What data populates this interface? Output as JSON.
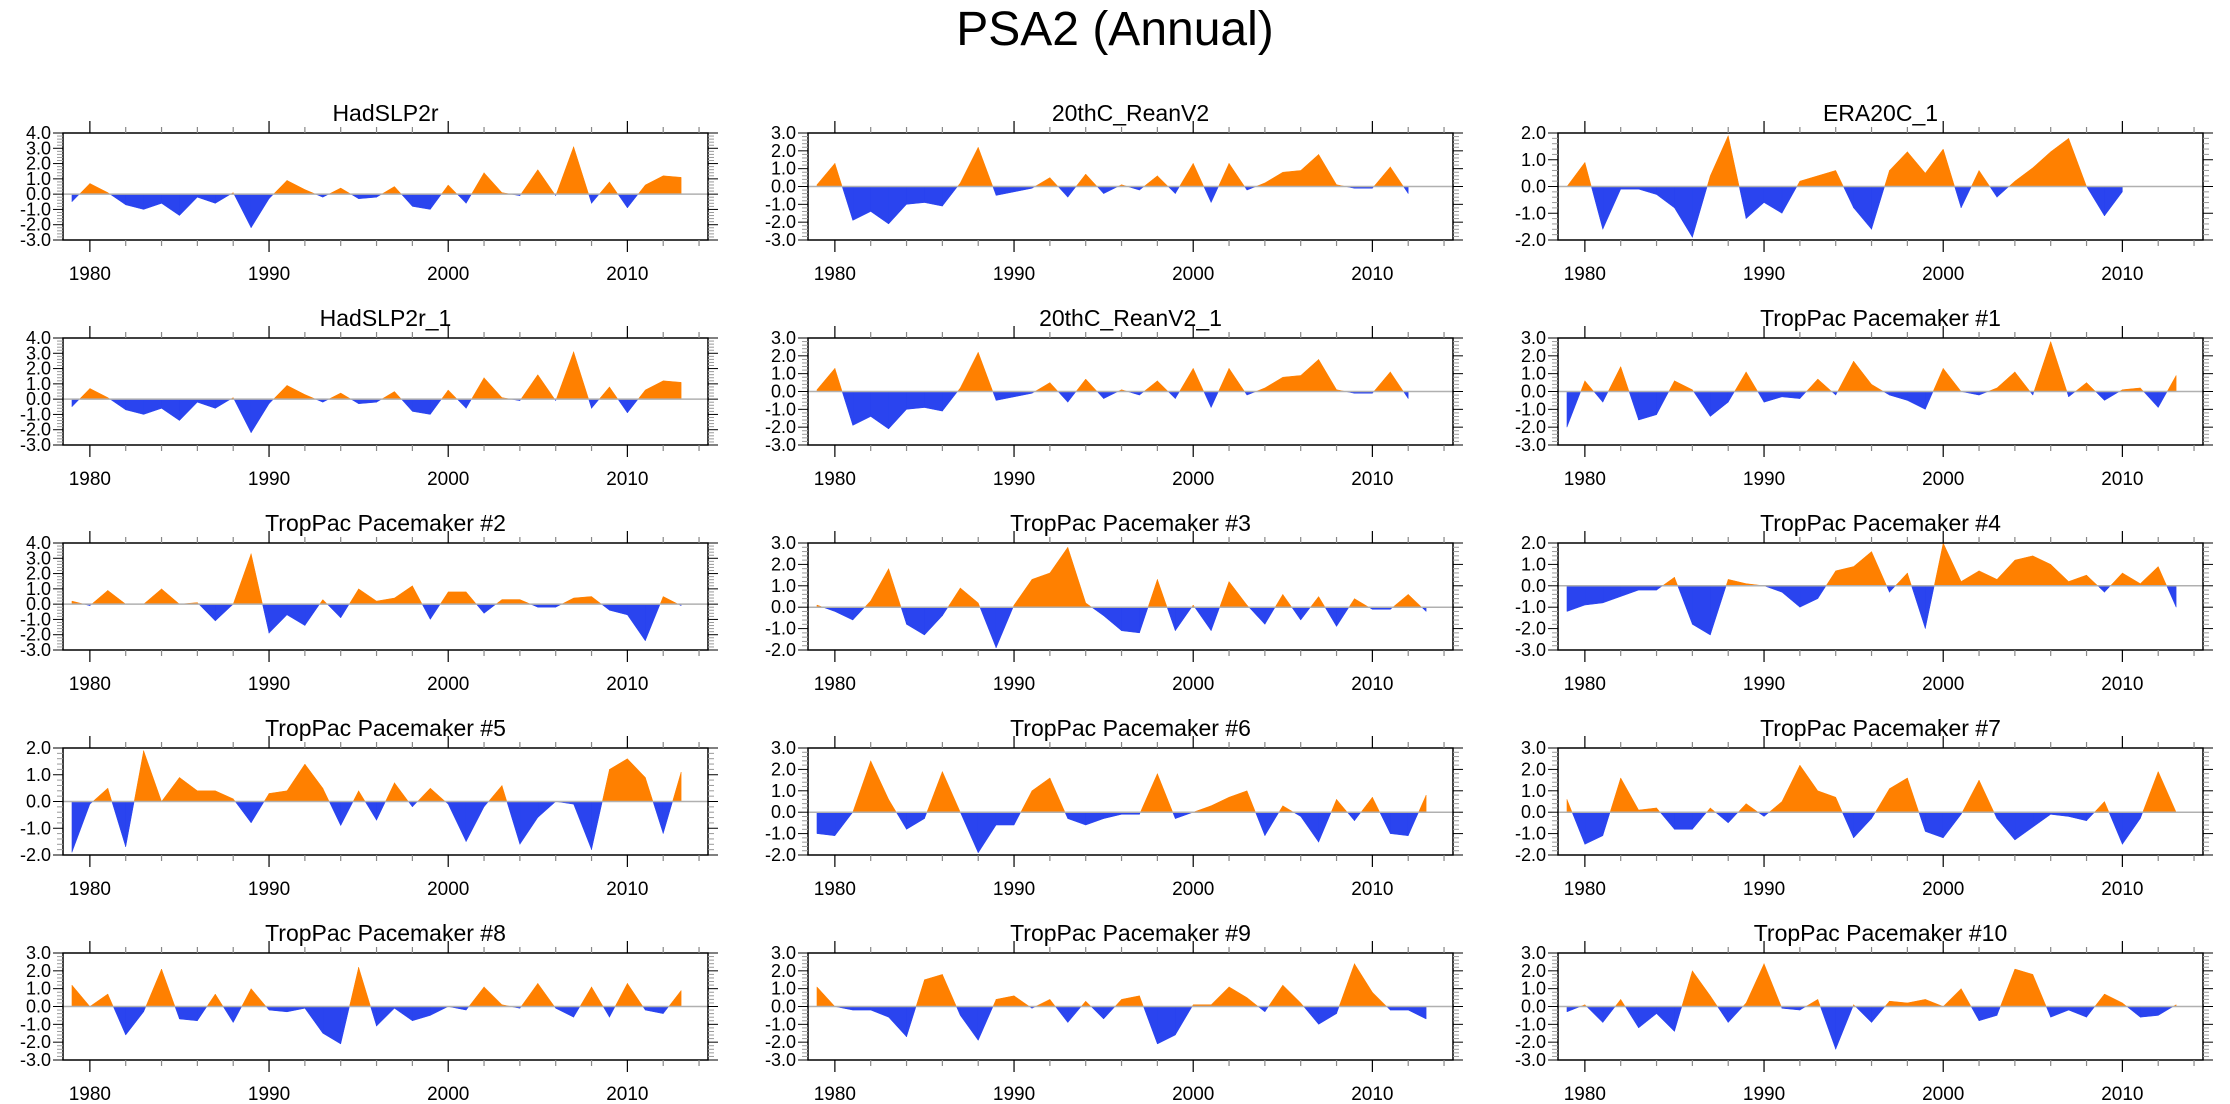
{
  "figure_title": "PSA2 (Annual)",
  "chart_data": {
    "type": "area",
    "title": "PSA2 (Annual)",
    "layout": "5 rows x 3 columns of panels",
    "x": [
      1979,
      1980,
      1981,
      1982,
      1983,
      1984,
      1985,
      1986,
      1987,
      1988,
      1989,
      1990,
      1991,
      1992,
      1993,
      1994,
      1995,
      1996,
      1997,
      1998,
      1999,
      2000,
      2001,
      2002,
      2003,
      2004,
      2005,
      2006,
      2007,
      2008,
      2009,
      2010,
      2011,
      2012,
      2013
    ],
    "xlim": [
      1978.5,
      2014.5
    ],
    "x_ticks": [
      1980,
      1990,
      2000,
      2010
    ],
    "x_tick_labels": [
      "1980",
      "1990",
      "2000",
      "2010"
    ],
    "positive_color": "#ff8000",
    "negative_color": "#2a44ef",
    "zero_line_color": "#b0b0b0",
    "panels": [
      {
        "title": "HadSLP2r",
        "ylim": [
          -3,
          4
        ],
        "y_ticks": [
          "4.0",
          "3.0",
          "2.0",
          "1.0",
          "0.0",
          "-1.0",
          "-2.0",
          "-3.0"
        ],
        "values": [
          -0.5,
          0.7,
          0.1,
          -0.7,
          -1.0,
          -0.6,
          -1.4,
          -0.2,
          -0.6,
          0.1,
          -2.2,
          -0.3,
          0.9,
          0.3,
          -0.2,
          0.4,
          -0.3,
          -0.2,
          0.5,
          -0.8,
          -1.0,
          0.6,
          -0.6,
          1.4,
          0.1,
          -0.1,
          1.6,
          -0.1,
          3.1,
          -0.6,
          0.8,
          -0.9,
          0.6,
          1.2,
          1.1
        ]
      },
      {
        "title": "20thC_ReanV2",
        "ylim": [
          -3,
          3
        ],
        "y_ticks": [
          "3.0",
          "2.0",
          "1.0",
          "0.0",
          "-1.0",
          "-2.0",
          "-3.0"
        ],
        "values": [
          0.1,
          1.3,
          -1.9,
          -1.4,
          -2.1,
          -1.0,
          -0.9,
          -1.1,
          0.2,
          2.2,
          -0.5,
          -0.3,
          -0.1,
          0.5,
          -0.6,
          0.7,
          -0.4,
          0.1,
          -0.2,
          0.6,
          -0.4,
          1.3,
          -0.9,
          1.3,
          -0.2,
          0.2,
          0.8,
          0.9,
          1.8,
          0.1,
          -0.1,
          -0.1,
          1.1,
          -0.4
        ]
      },
      {
        "title": "ERA20C_1",
        "ylim": [
          -2,
          2
        ],
        "y_ticks": [
          "2.0",
          "1.0",
          "0.0",
          "-1.0",
          "-2.0"
        ],
        "values": [
          0.0,
          0.9,
          -1.6,
          -0.1,
          -0.1,
          -0.3,
          -0.8,
          -1.9,
          0.4,
          1.9,
          -1.2,
          -0.6,
          -1.0,
          0.2,
          0.4,
          0.6,
          -0.8,
          -1.6,
          0.6,
          1.3,
          0.5,
          1.4,
          -0.8,
          0.6,
          -0.4,
          0.2,
          0.7,
          1.3,
          1.8,
          0.0,
          -1.1,
          -0.2
        ]
      },
      {
        "title": "HadSLP2r_1",
        "ylim": [
          -3,
          4
        ],
        "y_ticks": [
          "4.0",
          "3.0",
          "2.0",
          "1.0",
          "0.0",
          "-1.0",
          "-2.0",
          "-3.0"
        ],
        "values": [
          -0.5,
          0.7,
          0.1,
          -0.7,
          -1.0,
          -0.6,
          -1.4,
          -0.2,
          -0.6,
          0.1,
          -2.2,
          -0.3,
          0.9,
          0.3,
          -0.2,
          0.4,
          -0.3,
          -0.2,
          0.5,
          -0.8,
          -1.0,
          0.6,
          -0.6,
          1.4,
          0.1,
          -0.1,
          1.6,
          -0.1,
          3.1,
          -0.6,
          0.8,
          -0.9,
          0.6,
          1.2,
          1.1
        ]
      },
      {
        "title": "20thC_ReanV2_1",
        "ylim": [
          -3,
          3
        ],
        "y_ticks": [
          "3.0",
          "2.0",
          "1.0",
          "0.0",
          "-1.0",
          "-2.0",
          "-3.0"
        ],
        "values": [
          0.1,
          1.3,
          -1.9,
          -1.4,
          -2.1,
          -1.0,
          -0.9,
          -1.1,
          0.2,
          2.2,
          -0.5,
          -0.3,
          -0.1,
          0.5,
          -0.6,
          0.7,
          -0.4,
          0.1,
          -0.2,
          0.6,
          -0.4,
          1.3,
          -0.9,
          1.3,
          -0.2,
          0.2,
          0.8,
          0.9,
          1.8,
          0.1,
          -0.1,
          -0.1,
          1.1,
          -0.4
        ]
      },
      {
        "title": "TropPac Pacemaker #1",
        "ylim": [
          -3,
          3
        ],
        "y_ticks": [
          "3.0",
          "2.0",
          "1.0",
          "0.0",
          "-1.0",
          "-2.0",
          "-3.0"
        ],
        "values": [
          -2.0,
          0.6,
          -0.6,
          1.4,
          -1.6,
          -1.3,
          0.6,
          0.1,
          -1.4,
          -0.6,
          1.1,
          -0.6,
          -0.3,
          -0.4,
          0.7,
          -0.2,
          1.7,
          0.4,
          -0.2,
          -0.5,
          -1.0,
          1.3,
          0.0,
          -0.2,
          0.2,
          1.1,
          -0.2,
          2.8,
          -0.3,
          0.5,
          -0.5,
          0.1,
          0.2,
          -0.9,
          0.9
        ]
      },
      {
        "title": "TropPac Pacemaker #2",
        "ylim": [
          -3,
          4
        ],
        "y_ticks": [
          "4.0",
          "3.0",
          "2.0",
          "1.0",
          "0.0",
          "-1.0",
          "-2.0",
          "-3.0"
        ],
        "values": [
          0.2,
          -0.1,
          0.9,
          0.0,
          0.0,
          1.0,
          0.0,
          0.1,
          -1.1,
          0.0,
          3.3,
          -1.9,
          -0.7,
          -1.4,
          0.3,
          -0.9,
          1.0,
          0.2,
          0.4,
          1.2,
          -1.0,
          0.8,
          0.8,
          -0.6,
          0.3,
          0.3,
          -0.2,
          -0.2,
          0.4,
          0.5,
          -0.4,
          -0.7,
          -2.4,
          0.5,
          -0.1
        ]
      },
      {
        "title": "TropPac Pacemaker #3",
        "ylim": [
          -2,
          3
        ],
        "y_ticks": [
          "3.0",
          "2.0",
          "1.0",
          "0.0",
          "-1.0",
          "-2.0"
        ],
        "values": [
          0.1,
          -0.2,
          -0.6,
          0.3,
          1.8,
          -0.8,
          -1.3,
          -0.4,
          0.9,
          0.2,
          -1.9,
          0.1,
          1.3,
          1.6,
          2.8,
          0.2,
          -0.4,
          -1.1,
          -1.2,
          1.3,
          -1.1,
          0.1,
          -1.1,
          1.2,
          0.1,
          -0.8,
          0.6,
          -0.6,
          0.5,
          -0.9,
          0.4,
          -0.1,
          -0.1,
          0.6,
          -0.2
        ]
      },
      {
        "title": "TropPac Pacemaker #4",
        "ylim": [
          -3,
          2
        ],
        "y_ticks": [
          "2.0",
          "1.0",
          "0.0",
          "-1.0",
          "-2.0",
          "-3.0"
        ],
        "values": [
          -1.2,
          -0.9,
          -0.8,
          -0.5,
          -0.2,
          -0.2,
          0.4,
          -1.8,
          -2.3,
          0.3,
          0.1,
          0.0,
          -0.3,
          -1.0,
          -0.6,
          0.7,
          0.9,
          1.6,
          -0.3,
          0.6,
          -2.0,
          2.0,
          0.2,
          0.7,
          0.3,
          1.2,
          1.4,
          1.0,
          0.2,
          0.5,
          -0.3,
          0.6,
          0.1,
          0.9,
          -1.0
        ]
      },
      {
        "title": "TropPac Pacemaker #5",
        "ylim": [
          -2,
          2
        ],
        "y_ticks": [
          "2.0",
          "1.0",
          "0.0",
          "-1.0",
          "-2.0"
        ],
        "values": [
          -1.9,
          -0.1,
          0.5,
          -1.7,
          1.9,
          0.0,
          0.9,
          0.4,
          0.4,
          0.1,
          -0.8,
          0.3,
          0.4,
          1.4,
          0.5,
          -0.9,
          0.4,
          -0.7,
          0.7,
          -0.2,
          0.5,
          -0.1,
          -1.5,
          -0.2,
          0.6,
          -1.6,
          -0.6,
          0.0,
          -0.1,
          -1.8,
          1.2,
          1.6,
          0.9,
          -1.2,
          1.1
        ]
      },
      {
        "title": "TropPac Pacemaker #6",
        "ylim": [
          -2,
          3
        ],
        "y_ticks": [
          "3.0",
          "2.0",
          "1.0",
          "0.0",
          "-1.0",
          "-2.0"
        ],
        "values": [
          -1.0,
          -1.1,
          0.0,
          2.4,
          0.6,
          -0.8,
          -0.3,
          1.9,
          0.0,
          -1.9,
          -0.6,
          -0.6,
          1.0,
          1.6,
          -0.3,
          -0.6,
          -0.3,
          -0.1,
          -0.1,
          1.8,
          -0.3,
          0.0,
          0.3,
          0.7,
          1.0,
          -1.1,
          0.3,
          -0.2,
          -1.4,
          0.6,
          -0.4,
          0.7,
          -1.0,
          -1.1,
          0.8
        ]
      },
      {
        "title": "TropPac Pacemaker #7",
        "ylim": [
          -2,
          3
        ],
        "y_ticks": [
          "3.0",
          "2.0",
          "1.0",
          "0.0",
          "-1.0",
          "-2.0"
        ],
        "values": [
          0.6,
          -1.5,
          -1.1,
          1.6,
          0.1,
          0.2,
          -0.8,
          -0.8,
          0.2,
          -0.5,
          0.4,
          -0.2,
          0.5,
          2.2,
          1.0,
          0.7,
          -1.2,
          -0.3,
          1.1,
          1.6,
          -0.9,
          -1.2,
          -0.1,
          1.5,
          -0.3,
          -1.3,
          -0.7,
          -0.1,
          -0.2,
          -0.4,
          0.5,
          -1.5,
          -0.3,
          1.9,
          0.0
        ]
      },
      {
        "title": "TropPac Pacemaker #8",
        "ylim": [
          -3,
          3
        ],
        "y_ticks": [
          "3.0",
          "2.0",
          "1.0",
          "0.0",
          "-1.0",
          "-2.0",
          "-3.0"
        ],
        "values": [
          1.2,
          0.0,
          0.7,
          -1.6,
          -0.3,
          2.1,
          -0.7,
          -0.8,
          0.7,
          -0.9,
          1.0,
          -0.2,
          -0.3,
          -0.1,
          -1.5,
          -2.1,
          2.2,
          -1.1,
          -0.1,
          -0.8,
          -0.5,
          0.0,
          -0.2,
          1.1,
          0.1,
          -0.1,
          1.3,
          -0.1,
          -0.6,
          1.1,
          -0.6,
          1.3,
          -0.2,
          -0.4,
          0.9
        ]
      },
      {
        "title": "TropPac Pacemaker #9",
        "ylim": [
          -3,
          3
        ],
        "y_ticks": [
          "3.0",
          "2.0",
          "1.0",
          "0.0",
          "-1.0",
          "-2.0",
          "-3.0"
        ],
        "values": [
          1.1,
          0.0,
          -0.2,
          -0.2,
          -0.6,
          -1.7,
          1.5,
          1.8,
          -0.5,
          -1.9,
          0.4,
          0.6,
          -0.1,
          0.4,
          -0.9,
          0.3,
          -0.7,
          0.4,
          0.6,
          -2.1,
          -1.6,
          0.1,
          0.1,
          1.1,
          0.5,
          -0.3,
          1.2,
          0.2,
          -1.0,
          -0.4,
          2.4,
          0.8,
          -0.2,
          -0.2,
          -0.7
        ]
      },
      {
        "title": "TropPac Pacemaker #10",
        "ylim": [
          -3,
          3
        ],
        "y_ticks": [
          "3.0",
          "2.0",
          "1.0",
          "0.0",
          "-1.0",
          "-2.0",
          "-3.0"
        ],
        "values": [
          -0.3,
          0.1,
          -0.9,
          0.4,
          -1.2,
          -0.4,
          -1.4,
          2.0,
          0.6,
          -0.9,
          0.2,
          2.4,
          -0.1,
          -0.2,
          0.4,
          -2.4,
          0.1,
          -0.9,
          0.3,
          0.2,
          0.4,
          0.0,
          1.0,
          -0.8,
          -0.5,
          2.1,
          1.8,
          -0.6,
          -0.2,
          -0.6,
          0.7,
          0.2,
          -0.6,
          -0.5,
          0.1
        ]
      }
    ]
  }
}
